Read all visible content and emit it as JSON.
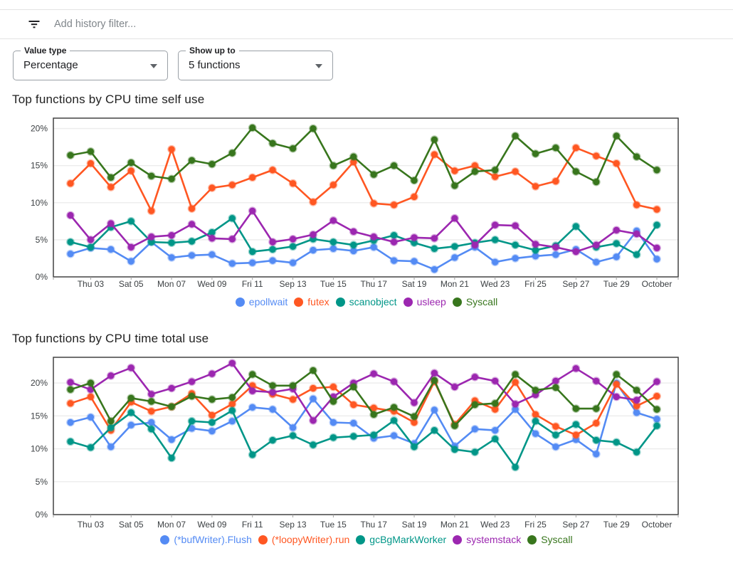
{
  "topbar": {
    "placeholder": "Add history filter...",
    "filter_icon": "filter-list-icon"
  },
  "filters": [
    {
      "label": "Value type",
      "value": "Percentage",
      "icon": "arrow-dropdown-icon"
    },
    {
      "label": "Show up to",
      "value": "5 functions",
      "icon": "arrow-dropdown-icon"
    }
  ],
  "palette": {
    "blue": "#548bf4",
    "orange": "#ff5722",
    "teal": "#009688",
    "purple": "#9c27b0",
    "green": "#38761d"
  },
  "chart_data": [
    {
      "type": "line",
      "title": "Top functions by CPU time self use",
      "xlabel": "",
      "ylabel": "",
      "ylim": [
        0,
        21.4
      ],
      "grid": true,
      "legend_position": "bottom",
      "y_tick_labels": [
        "0%",
        "5%",
        "10%",
        "15%",
        "20%"
      ],
      "x_tick_labels": [
        "Thu 03",
        "Sat 05",
        "Mon 07",
        "Wed 09",
        "Fri 11",
        "Sep 13",
        "Tue 15",
        "Thu 17",
        "Sat 19",
        "Mon 21",
        "Wed 23",
        "Fri 25",
        "Sep 27",
        "Tue 29",
        "October"
      ],
      "series": [
        {
          "name": "epollwait",
          "color": "#548bf4",
          "values": [
            3.1,
            3.9,
            3.7,
            2.1,
            4.7,
            2.6,
            2.9,
            3.0,
            1.8,
            1.9,
            2.2,
            1.9,
            3.6,
            3.8,
            3.5,
            4.0,
            2.2,
            2.1,
            1.0,
            2.6,
            4.0,
            2.0,
            2.5,
            2.8,
            3.0,
            3.7,
            2.0,
            2.7,
            6.2,
            2.4
          ]
        },
        {
          "name": "futex",
          "color": "#ff5722",
          "values": [
            12.6,
            15.3,
            12.1,
            14.3,
            8.9,
            17.2,
            9.2,
            12.0,
            12.4,
            13.4,
            14.4,
            12.6,
            10.1,
            12.4,
            15.5,
            9.9,
            9.7,
            10.8,
            16.5,
            14.3,
            15.0,
            13.5,
            14.2,
            12.2,
            12.9,
            17.4,
            16.3,
            15.3,
            9.7,
            9.1
          ]
        },
        {
          "name": "scanobject",
          "color": "#009688",
          "values": [
            4.7,
            4.0,
            6.7,
            7.5,
            4.7,
            4.6,
            4.8,
            6.0,
            7.9,
            3.4,
            3.7,
            4.1,
            5.1,
            4.7,
            4.3,
            4.9,
            5.6,
            4.6,
            3.8,
            4.1,
            4.6,
            5.0,
            4.3,
            3.6,
            4.2,
            6.8,
            4.0,
            4.5,
            3.0,
            7.0
          ]
        },
        {
          "name": "usleep",
          "color": "#9c27b0",
          "values": [
            8.3,
            5.0,
            7.2,
            4.0,
            5.4,
            5.6,
            7.1,
            5.2,
            5.1,
            8.9,
            4.7,
            5.1,
            5.7,
            7.6,
            6.1,
            5.4,
            4.7,
            5.3,
            5.2,
            7.9,
            4.3,
            7.0,
            6.9,
            4.4,
            4.0,
            3.4,
            4.3,
            6.3,
            5.8,
            3.9
          ]
        },
        {
          "name": "Syscall",
          "color": "#38761d",
          "values": [
            16.4,
            16.9,
            13.4,
            15.4,
            13.6,
            13.2,
            15.7,
            15.2,
            16.7,
            20.1,
            18.0,
            17.3,
            20.0,
            15.0,
            16.2,
            13.8,
            15.0,
            13.0,
            18.5,
            12.3,
            14.2,
            14.4,
            19.0,
            16.6,
            17.4,
            14.2,
            12.8,
            19.0,
            16.2,
            14.4
          ]
        }
      ]
    },
    {
      "type": "line",
      "title": "Top functions by CPU time total use",
      "xlabel": "",
      "ylabel": "",
      "ylim": [
        0,
        23.9
      ],
      "grid": true,
      "legend_position": "bottom",
      "y_tick_labels": [
        "0%",
        "5%",
        "10%",
        "15%",
        "20%"
      ],
      "x_tick_labels": [
        "Thu 03",
        "Sat 05",
        "Mon 07",
        "Wed 09",
        "Fri 11",
        "Sep 13",
        "Tue 15",
        "Thu 17",
        "Sat 19",
        "Mon 21",
        "Wed 23",
        "Fri 25",
        "Sep 27",
        "Tue 29",
        "October"
      ],
      "series": [
        {
          "name": "(*bufWriter).Flush",
          "color": "#548bf4",
          "values": [
            14.0,
            14.8,
            10.3,
            13.6,
            14.0,
            11.4,
            13.1,
            12.7,
            14.2,
            16.3,
            16.0,
            13.2,
            17.6,
            14.0,
            13.9,
            11.6,
            12.0,
            10.8,
            15.9,
            10.4,
            13.0,
            12.8,
            16.0,
            12.3,
            10.3,
            11.4,
            9.2,
            20.0,
            15.5,
            14.5
          ]
        },
        {
          "name": "(*loopyWriter).run",
          "color": "#ff5722",
          "values": [
            16.9,
            17.9,
            12.8,
            17.1,
            15.7,
            16.4,
            18.4,
            15.1,
            16.8,
            19.6,
            18.3,
            17.5,
            19.2,
            19.4,
            16.7,
            16.2,
            15.7,
            14.0,
            20.2,
            13.7,
            17.3,
            16.0,
            20.1,
            15.2,
            13.4,
            12.1,
            13.9,
            19.8,
            16.5,
            18.0
          ]
        },
        {
          "name": "gcBgMarkWorker",
          "color": "#009688",
          "values": [
            11.1,
            10.2,
            13.2,
            15.5,
            13.0,
            8.6,
            14.2,
            14.0,
            15.8,
            9.1,
            11.3,
            12.0,
            10.6,
            11.7,
            11.9,
            12.1,
            14.3,
            10.3,
            12.8,
            9.9,
            9.5,
            11.5,
            7.2,
            14.2,
            12.1,
            13.7,
            11.3,
            11.0,
            9.5,
            13.5
          ]
        },
        {
          "name": "systemstack",
          "color": "#9c27b0",
          "values": [
            20.1,
            19.0,
            21.1,
            22.3,
            18.3,
            19.2,
            20.2,
            21.4,
            23.0,
            18.8,
            18.6,
            19.1,
            14.3,
            17.9,
            20.0,
            21.4,
            20.2,
            17.0,
            21.5,
            19.4,
            20.9,
            20.3,
            16.8,
            18.2,
            20.3,
            22.2,
            20.3,
            17.9,
            17.4,
            20.2
          ]
        },
        {
          "name": "Syscall",
          "color": "#38761d",
          "values": [
            19.0,
            20.0,
            14.2,
            17.7,
            17.2,
            16.4,
            18.0,
            17.5,
            17.8,
            21.3,
            19.6,
            19.6,
            21.9,
            17.2,
            19.4,
            15.2,
            16.3,
            14.9,
            20.4,
            13.5,
            16.7,
            16.9,
            21.3,
            18.9,
            19.3,
            16.1,
            16.1,
            21.3,
            18.9,
            16.0
          ]
        }
      ]
    }
  ]
}
